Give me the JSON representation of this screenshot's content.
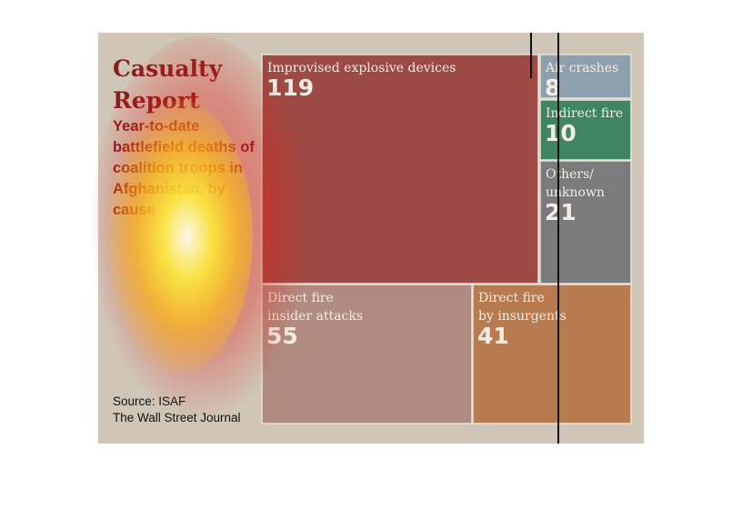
{
  "title": "Casualty Report",
  "subtitle": "Year-to-date battlefield deaths of coalition troops in Afghanistan, by cause",
  "source": [
    "Source: ISAF",
    "The Wall Street Journal"
  ],
  "chart_data": {
    "type": "treemap",
    "title": "Casualty Report",
    "subtitle": "Year-to-date battlefield deaths of coalition troops in Afghanistan, by cause",
    "items": [
      {
        "label": [
          "Improvised explosive devices"
        ],
        "value": 119,
        "color": "#9c4a43"
      },
      {
        "label": [
          "Air crashes"
        ],
        "value": 8,
        "color": "#8ea0ae"
      },
      {
        "label": [
          "Indirect fire"
        ],
        "value": 10,
        "color": "#3f8660"
      },
      {
        "label": [
          "Others/",
          "unknown"
        ],
        "value": 21,
        "color": "#7b7b7b"
      },
      {
        "label": [
          "Direct fire",
          "insider attacks"
        ],
        "value": 55,
        "color": "#b08c80"
      },
      {
        "label": [
          "Direct fire",
          "by insurgents"
        ],
        "value": 41,
        "color": "#b87b50"
      }
    ]
  }
}
